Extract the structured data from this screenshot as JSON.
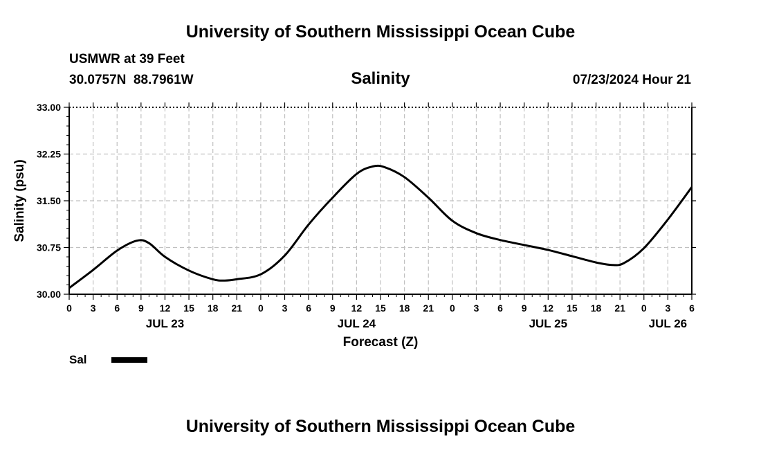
{
  "header": {
    "title": "University of Southern Mississippi Ocean Cube",
    "station_line": "USMWR at 39 Feet",
    "coords_line": "30.0757N  88.7961W",
    "datetime_line": "07/23/2024 Hour 21"
  },
  "footer": {
    "title": "University of Southern Mississippi Ocean Cube"
  },
  "colors": {
    "line": "#000000",
    "grid": "#c0c0c0",
    "background": "#ffffff"
  },
  "chart_data": {
    "type": "line",
    "title": "Salinity",
    "xlabel": "Forecast (Z)",
    "ylabel": "Salinity (psu)",
    "ylim": [
      30.0,
      33.0
    ],
    "yticks": [
      30.0,
      30.75,
      31.5,
      32.25,
      33.0
    ],
    "ytick_labels": [
      "30.00",
      "30.75",
      "31.50",
      "32.25",
      "33.00"
    ],
    "xlim_hours": [
      0,
      78
    ],
    "xtick_hours": [
      0,
      3,
      6,
      9,
      12,
      15,
      18,
      21,
      24,
      27,
      30,
      33,
      36,
      39,
      42,
      45,
      48,
      51,
      54,
      57,
      60,
      63,
      66,
      69,
      72,
      75,
      78
    ],
    "xtick_labels": [
      "0",
      "3",
      "6",
      "9",
      "12",
      "15",
      "18",
      "21",
      "0",
      "3",
      "6",
      "9",
      "12",
      "15",
      "18",
      "21",
      "0",
      "3",
      "6",
      "9",
      "12",
      "15",
      "18",
      "21",
      "0",
      "3",
      "6"
    ],
    "date_labels": [
      {
        "hour": 12,
        "text": "JUL 23"
      },
      {
        "hour": 36,
        "text": "JUL 24"
      },
      {
        "hour": 60,
        "text": "JUL 25"
      },
      {
        "hour": 75,
        "text": "JUL 26"
      }
    ],
    "grid": true,
    "legend": {
      "position": "bottom-left",
      "entries": [
        "Sal"
      ]
    },
    "series": [
      {
        "name": "Sal",
        "x": [
          0,
          3,
          6,
          8.5,
          10,
          12,
          15,
          18,
          19.5,
          21,
          24,
          27,
          30,
          33,
          36,
          38,
          39.5,
          42,
          45,
          48,
          51,
          54,
          57,
          60,
          63,
          66,
          68,
          69.5,
          72,
          75,
          78
        ],
        "values": [
          30.1,
          30.39,
          30.7,
          30.86,
          30.82,
          30.6,
          30.38,
          30.24,
          30.22,
          30.24,
          30.32,
          30.62,
          31.12,
          31.55,
          31.93,
          32.05,
          32.04,
          31.88,
          31.55,
          31.18,
          30.98,
          30.87,
          30.79,
          30.71,
          30.61,
          30.51,
          30.47,
          30.5,
          30.74,
          31.2,
          31.72
        ]
      }
    ]
  }
}
